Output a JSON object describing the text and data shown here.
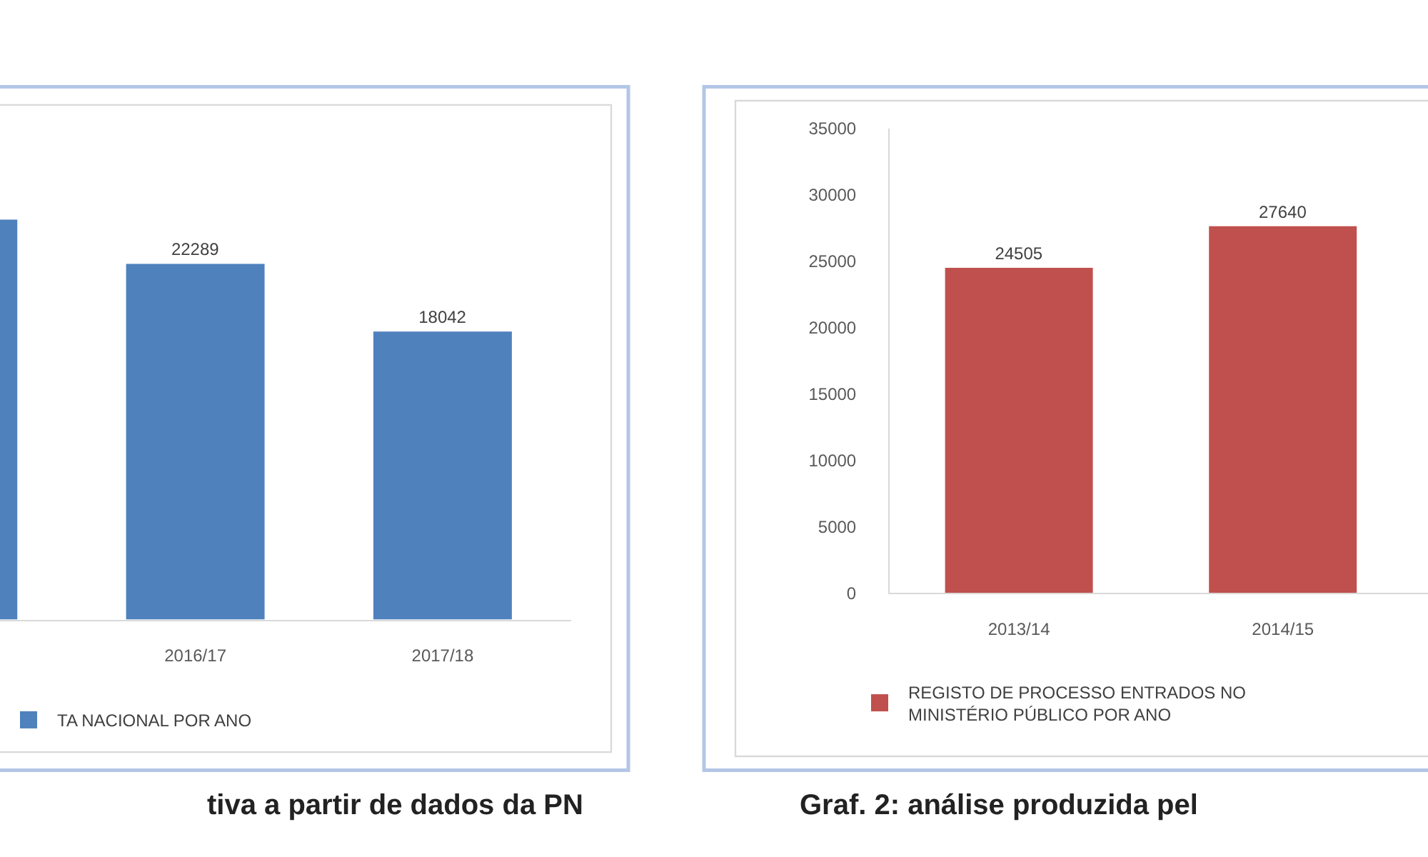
{
  "chart_data": [
    {
      "type": "bar",
      "categories": [
        null,
        "2016/17",
        "2017/18"
      ],
      "series": [
        {
          "name": "TA NACIONAL POR ANO",
          "color": "#4f81bd",
          "values": [
            25060,
            22289,
            18042
          ],
          "value_labels": [
            null,
            "22289",
            "18042"
          ]
        }
      ],
      "legend": "bottom",
      "tick_labels": "x",
      "annotations": [
        "tiva a partir de dados da PN"
      ]
    },
    {
      "type": "bar",
      "categories": [
        "2013/14",
        "2014/15"
      ],
      "series": [
        {
          "name": "REGISTO DE PROCESSO ENTRADOS NO\nMINISTÉRIO PÚBLICO POR ANO",
          "color": "#c0504d",
          "values": [
            24505,
            27640
          ]
        }
      ],
      "ylim": [
        0,
        35000
      ],
      "yticks": [
        0,
        5000,
        10000,
        15000,
        20000,
        25000,
        30000,
        35000
      ],
      "data_labels": true,
      "legend": "bottom",
      "annotations": [
        "Graf. 2: análise produzida pel"
      ]
    }
  ]
}
